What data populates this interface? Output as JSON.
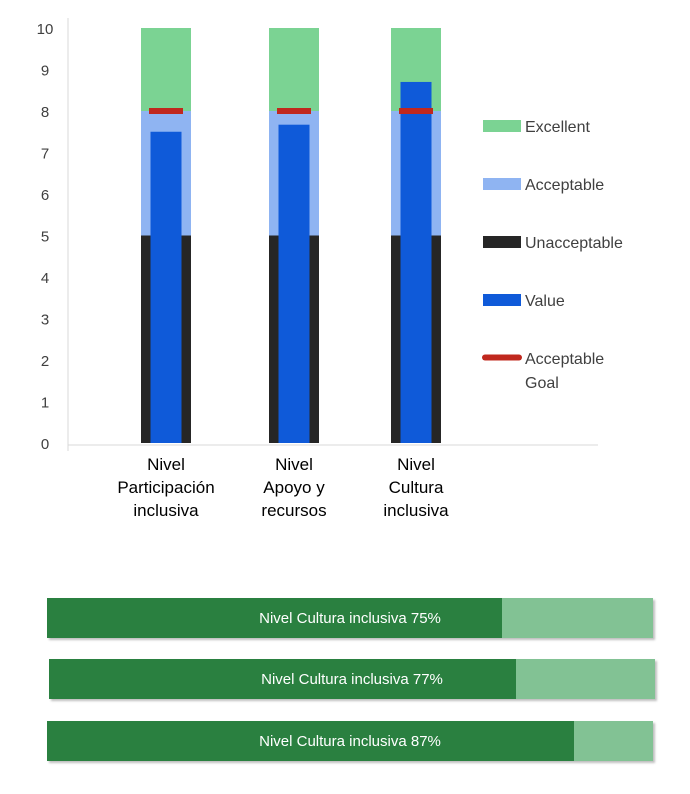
{
  "chart_data": {
    "type": "bar",
    "categories": [
      [
        "Nivel",
        "Participación",
        "inclusiva"
      ],
      [
        "Nivel",
        "Apoyo y",
        "recursos"
      ],
      [
        "Nivel",
        "Cultura",
        "inclusiva"
      ]
    ],
    "ylim": [
      0,
      10
    ],
    "yticks": [
      0,
      1,
      2,
      3,
      4,
      5,
      6,
      7,
      8,
      9,
      10
    ],
    "grid": false,
    "legend_position": "right",
    "bands": [
      {
        "name": "Unacceptable",
        "from": 0,
        "to": 5,
        "color": "#262626"
      },
      {
        "name": "Acceptable",
        "from": 5,
        "to": 8,
        "color": "#8fb4f2"
      },
      {
        "name": "Excellent",
        "from": 8,
        "to": 10,
        "color": "#7bd393"
      }
    ],
    "series": [
      {
        "name": "Value",
        "values": [
          7.5,
          7.67,
          8.7
        ],
        "color": "#0f5ad9"
      },
      {
        "name": "Acceptable Goal",
        "values": [
          8,
          8,
          8
        ],
        "color": "#c0281e"
      }
    ],
    "legend": [
      {
        "label": [
          "Excellent"
        ],
        "color": "#7bd393",
        "kind": "box"
      },
      {
        "label": [
          "Acceptable"
        ],
        "color": "#8fb4f2",
        "kind": "box"
      },
      {
        "label": [
          "Unacceptable"
        ],
        "color": "#262626",
        "kind": "box"
      },
      {
        "label": [
          "Value"
        ],
        "color": "#0f5ad9",
        "kind": "box"
      },
      {
        "label": [
          " Acceptable",
          "Goal"
        ],
        "color": "#c0281e",
        "kind": "line"
      }
    ]
  },
  "progress_bars": [
    {
      "label": "Nivel Cultura inclusiva 75%",
      "fraction": 0.75,
      "fill_color": "#2a8040",
      "track_color": "#82c294"
    },
    {
      "label": "Nivel Cultura inclusiva 77%",
      "fraction": 0.77,
      "fill_color": "#2a8040",
      "track_color": "#82c294"
    },
    {
      "label": "Nivel Cultura inclusiva 87%",
      "fraction": 0.87,
      "fill_color": "#2a8040",
      "track_color": "#82c294"
    }
  ]
}
